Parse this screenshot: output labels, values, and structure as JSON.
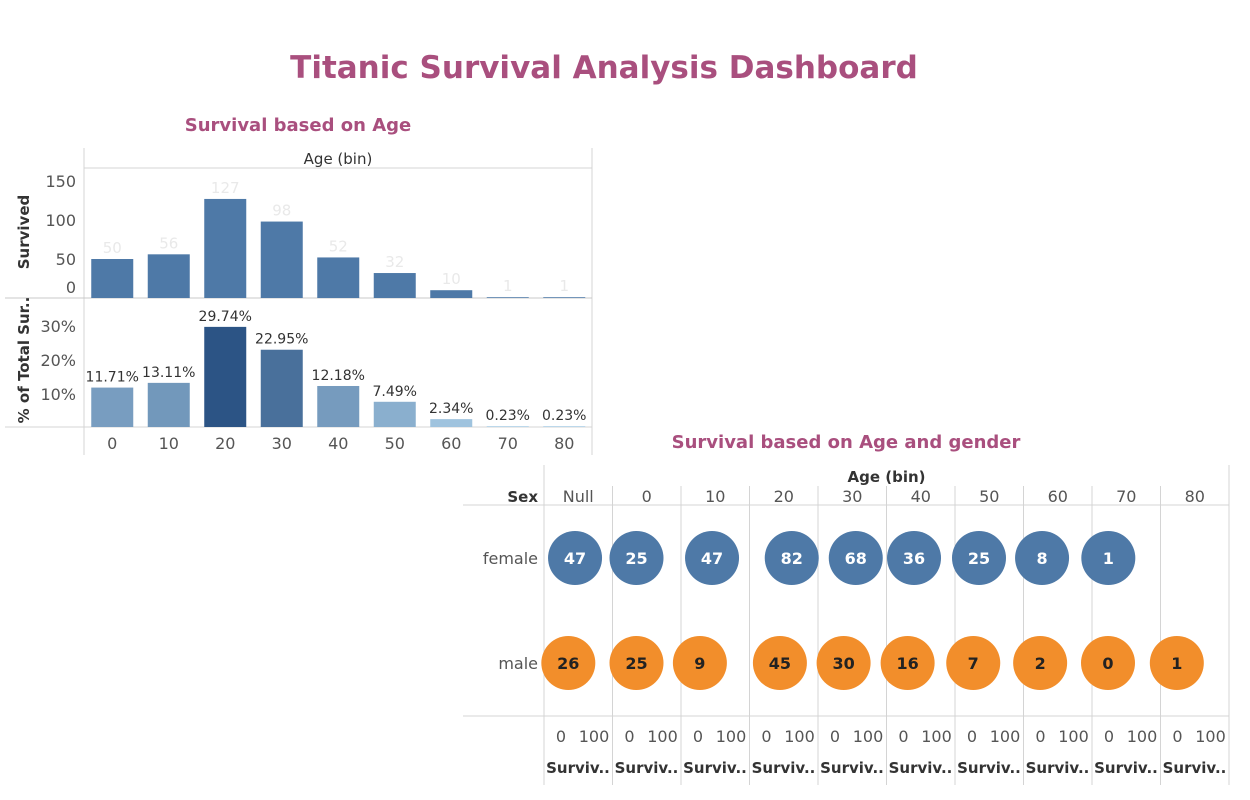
{
  "dashboard": {
    "title": "Titanic Survival Analysis Dashboard"
  },
  "colors": {
    "title": "#a94f7e",
    "bar_blue": "#4e79a7",
    "female": "#4e79a7",
    "male": "#f28e2b",
    "pct_scale": [
      "#a9cde6",
      "#2c5485"
    ]
  },
  "chart_data": [
    {
      "type": "bar",
      "title": "Survival based on Age",
      "column_header": "Age (bin)",
      "categories": [
        "0",
        "10",
        "20",
        "30",
        "40",
        "50",
        "60",
        "70",
        "80"
      ],
      "panels": [
        {
          "ylabel": "Survived",
          "yticks": [
            "150",
            "100",
            "50",
            "0"
          ],
          "ylim": [
            0,
            160
          ],
          "values": [
            50,
            56,
            127,
            98,
            52,
            32,
            10,
            1,
            1
          ],
          "labels": [
            "50",
            "56",
            "127",
            "98",
            "52",
            "32",
            "10",
            "1",
            "1"
          ]
        },
        {
          "ylabel": "% of Total Sur..",
          "yticks": [
            "30%",
            "20%",
            "10%"
          ],
          "ylim": [
            0,
            31
          ],
          "values": [
            11.71,
            13.11,
            29.74,
            22.95,
            12.18,
            7.49,
            2.34,
            0.23,
            0.23
          ],
          "labels": [
            "11.71%",
            "13.11%",
            "29.74%",
            "22.95%",
            "12.18%",
            "7.49%",
            "2.34%",
            "0.23%",
            "0.23%"
          ]
        }
      ]
    },
    {
      "type": "scatter",
      "title": "Survival based on Age and gender",
      "column_header": "Age (bin)",
      "row_header": "Sex",
      "columns": [
        "Null",
        "0",
        "10",
        "20",
        "30",
        "40",
        "50",
        "60",
        "70",
        "80"
      ],
      "rows": [
        "female",
        "male"
      ],
      "axis_ticks": [
        "0",
        "100"
      ],
      "axis_label": "Surviv..",
      "series": [
        {
          "name": "female",
          "values": [
            47,
            25,
            47,
            82,
            68,
            36,
            25,
            8,
            1,
            null
          ]
        },
        {
          "name": "male",
          "values": [
            26,
            25,
            9,
            45,
            30,
            16,
            7,
            2,
            0,
            1
          ]
        }
      ]
    }
  ]
}
